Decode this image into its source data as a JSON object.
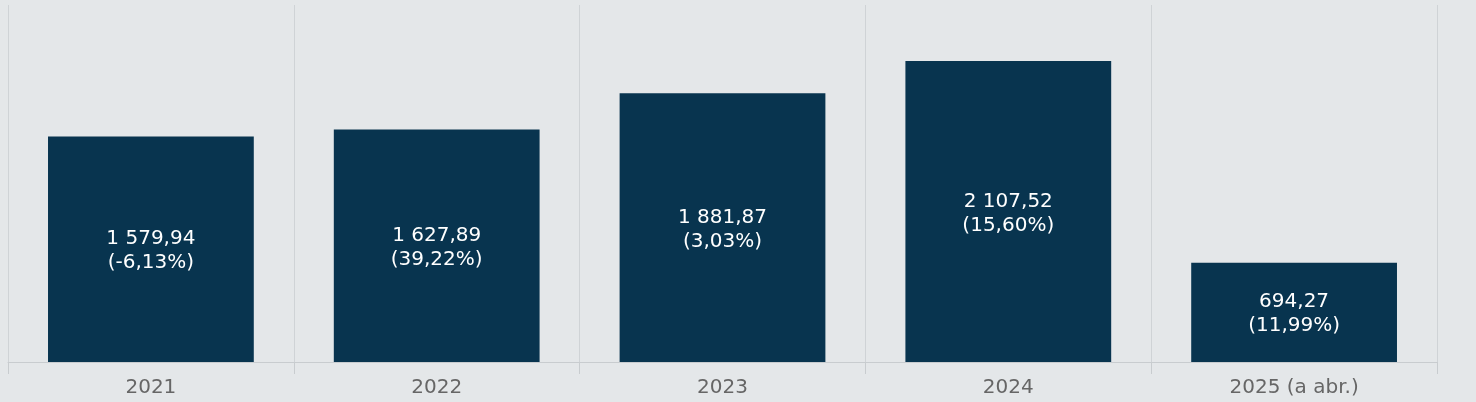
{
  "chart_data": {
    "type": "bar",
    "categories": [
      "2021",
      "2022",
      "2023",
      "2024",
      "2025 (a abr.)"
    ],
    "values": [
      1579.94,
      1627.89,
      1881.87,
      2107.52,
      694.27
    ],
    "value_labels": [
      "1 579,94\n(-6,13%)",
      "1 627,89\n(39,22%)",
      "1 881,87\n(3,03%)",
      "2 107,52\n(15,60%)",
      "694,27\n(11,99%)"
    ],
    "color": "#08344f",
    "ylim": [
      0,
      2500
    ],
    "grid": "x"
  }
}
